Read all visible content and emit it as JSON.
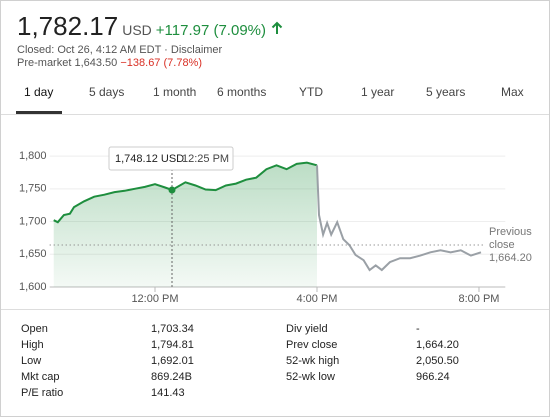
{
  "header": {
    "price": "1,782.17",
    "currency": "USD",
    "change": "+117.97 (7.09%)",
    "status": "Closed: Oct 26, 4:12 AM EDT ·",
    "disclaimer": "Disclaimer",
    "premarket_label": "Pre-market",
    "premarket_price": "1,643.50",
    "premarket_change": "−138.67 (7.78%)"
  },
  "tabs": [
    "1 day",
    "5 days",
    "1 month",
    "6 months",
    "YTD",
    "1 year",
    "5 years",
    "Max"
  ],
  "selected_tab": 0,
  "chart_data": {
    "type": "line",
    "series": [
      {
        "color": "#1e8e3e",
        "x": [
          9.5,
          9.6,
          9.75,
          9.9,
          10.0,
          10.25,
          10.5,
          10.75,
          11.0,
          11.25,
          11.5,
          11.75,
          12.0,
          12.25,
          12.42,
          12.75,
          13.0,
          13.25,
          13.5,
          13.75,
          14.0,
          14.25,
          14.5,
          14.75,
          15.0,
          15.25,
          15.5,
          15.75,
          16.0
        ],
        "values": [
          1702,
          1699,
          1710,
          1712,
          1722,
          1731,
          1738,
          1741,
          1745,
          1747,
          1750,
          1753,
          1757,
          1752,
          1748.12,
          1760,
          1755,
          1749,
          1748,
          1755,
          1758,
          1764,
          1767,
          1780,
          1786,
          1780,
          1788,
          1790,
          1786
        ]
      },
      {
        "color": "#9aa0a6",
        "x": [
          16.0,
          16.05,
          16.15,
          16.25,
          16.35,
          16.5,
          16.65,
          16.8,
          16.95,
          17.15,
          17.3,
          17.45,
          17.6,
          17.8,
          18.05,
          18.3,
          18.55,
          18.8,
          19.05,
          19.3,
          19.55,
          19.8,
          20.05
        ],
        "values": [
          1786,
          1710,
          1680,
          1698,
          1680,
          1699,
          1673,
          1664,
          1649,
          1641,
          1626,
          1633,
          1626,
          1638,
          1644,
          1644,
          1648,
          1653,
          1656,
          1653,
          1656,
          1648,
          1653
        ]
      }
    ],
    "xlim": [
      9.4,
      20.65
    ],
    "xticks": [
      {
        "value": 12,
        "label": "12:00 PM"
      },
      {
        "value": 16,
        "label": "4:00 PM"
      },
      {
        "value": 20,
        "label": "8:00 PM"
      }
    ],
    "ylim": [
      1600,
      1820
    ],
    "yticks": [
      {
        "value": 1600,
        "label": "1,600"
      },
      {
        "value": 1650,
        "label": "1,650"
      },
      {
        "value": 1700,
        "label": "1,700"
      },
      {
        "value": 1750,
        "label": "1,750"
      },
      {
        "value": 1800,
        "label": "1,800"
      }
    ],
    "grid": true,
    "reference_line": {
      "value": 1664.2,
      "label": "Previous close",
      "value_label": "1,664.20"
    },
    "tooltip": {
      "x": 12.42,
      "value": 1748.12,
      "value_label": "1,748.12 USD",
      "x_label": "12:25 PM"
    }
  },
  "stats": [
    [
      "Open",
      "1,703.34",
      "Div yield",
      "-"
    ],
    [
      "High",
      "1,794.81",
      "Prev close",
      "1,664.20"
    ],
    [
      "Low",
      "1,692.01",
      "52-wk high",
      "2,050.50"
    ],
    [
      "Mkt cap",
      "869.24B",
      "52-wk low",
      "966.24"
    ],
    [
      "P/E ratio",
      "141.43"
    ]
  ]
}
